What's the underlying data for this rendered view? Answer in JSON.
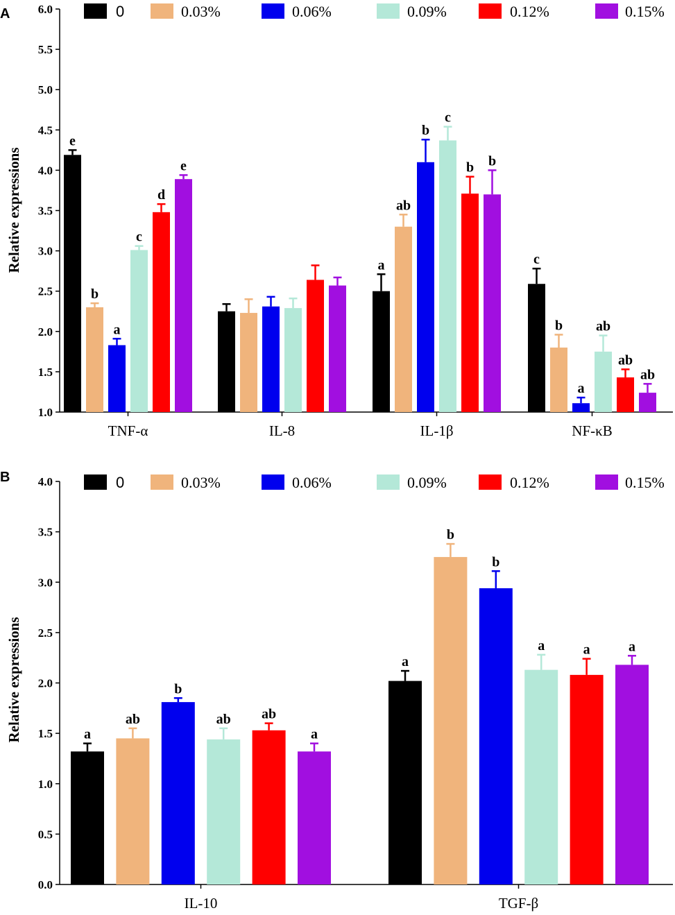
{
  "figure": {
    "panels": [
      "A",
      "B"
    ]
  },
  "colors": {
    "0": "#000000",
    "0.03%": "#f0b47c",
    "0.06%": "#0000ee",
    "0.09%": "#b4e8d8",
    "0.12%": "#ff0000",
    "0.15%": "#a10fe0"
  },
  "chart_data": [
    {
      "panel": "A",
      "type": "bar",
      "ylabel": "Relative expressions",
      "ylim": [
        1.0,
        6.0
      ],
      "yticks": [
        "1.0",
        "1.5",
        "2.0",
        "2.5",
        "3.0",
        "3.5",
        "4.0",
        "4.5",
        "5.0",
        "5.5",
        "6.0"
      ],
      "categories": [
        "TNF-α",
        "IL-8",
        "IL-1β",
        "NF-κB"
      ],
      "legend_position": "top",
      "series": [
        {
          "name": "0",
          "values": [
            4.19,
            2.25,
            2.5,
            2.59
          ],
          "errors": [
            0.06,
            0.09,
            0.21,
            0.19
          ],
          "labels": [
            "e",
            "",
            "a",
            "c"
          ]
        },
        {
          "name": "0.03%",
          "values": [
            2.3,
            2.23,
            3.3,
            1.8
          ],
          "errors": [
            0.05,
            0.17,
            0.15,
            0.16
          ],
          "labels": [
            "b",
            "",
            "ab",
            "b"
          ]
        },
        {
          "name": "0.06%",
          "values": [
            1.83,
            2.31,
            4.1,
            1.11
          ],
          "errors": [
            0.08,
            0.12,
            0.28,
            0.07
          ],
          "labels": [
            "a",
            "",
            "b",
            "a"
          ]
        },
        {
          "name": "0.09%",
          "values": [
            3.01,
            2.29,
            4.37,
            1.75
          ],
          "errors": [
            0.05,
            0.12,
            0.17,
            0.2
          ],
          "labels": [
            "c",
            "",
            "c",
            "ab"
          ]
        },
        {
          "name": "0.12%",
          "values": [
            3.48,
            2.64,
            3.71,
            1.43
          ],
          "errors": [
            0.1,
            0.18,
            0.21,
            0.1
          ],
          "labels": [
            "d",
            "",
            "b",
            "ab"
          ]
        },
        {
          "name": "0.15%",
          "values": [
            3.89,
            2.57,
            3.7,
            1.24
          ],
          "errors": [
            0.05,
            0.1,
            0.3,
            0.11
          ],
          "labels": [
            "e",
            "",
            "b",
            "ab"
          ]
        }
      ]
    },
    {
      "panel": "B",
      "type": "bar",
      "ylabel": "Relative expressions",
      "ylim": [
        0.0,
        4.0
      ],
      "yticks": [
        "0.0",
        "0.5",
        "1.0",
        "1.5",
        "2.0",
        "2.5",
        "3.0",
        "3.5",
        "4.0"
      ],
      "categories": [
        "IL-10",
        "TGF-β"
      ],
      "legend_position": "top",
      "series": [
        {
          "name": "0",
          "values": [
            1.32,
            2.02
          ],
          "errors": [
            0.08,
            0.1
          ],
          "labels": [
            "a",
            "a"
          ]
        },
        {
          "name": "0.03%",
          "values": [
            1.45,
            3.25
          ],
          "errors": [
            0.1,
            0.13
          ],
          "labels": [
            "ab",
            "b"
          ]
        },
        {
          "name": "0.06%",
          "values": [
            1.81,
            2.94
          ],
          "errors": [
            0.04,
            0.17
          ],
          "labels": [
            "b",
            "b"
          ]
        },
        {
          "name": "0.09%",
          "values": [
            1.44,
            2.13
          ],
          "errors": [
            0.11,
            0.15
          ],
          "labels": [
            "ab",
            "a"
          ]
        },
        {
          "name": "0.12%",
          "values": [
            1.53,
            2.08
          ],
          "errors": [
            0.07,
            0.16
          ],
          "labels": [
            "ab",
            "a"
          ]
        },
        {
          "name": "0.15%",
          "values": [
            1.32,
            2.18
          ],
          "errors": [
            0.08,
            0.09
          ],
          "labels": [
            "a",
            "a"
          ]
        }
      ]
    }
  ]
}
